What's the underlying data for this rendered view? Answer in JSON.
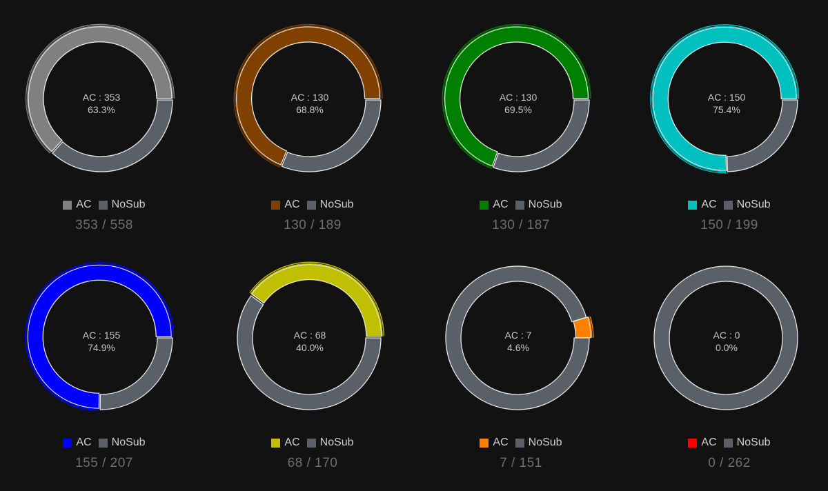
{
  "colors": {
    "nosub": "#5a6068",
    "background": "#121212"
  },
  "legend": {
    "ac_label": "AC",
    "nosub_label": "NoSub"
  },
  "chart_data": [
    {
      "type": "pie",
      "ac": 353,
      "total": 558,
      "center_line1": "AC : 353",
      "center_line2": "63.3%",
      "count_text": "353 / 558",
      "color": "#808080",
      "slices": [
        {
          "label": "AC",
          "value": 353
        },
        {
          "label": "NoSub",
          "value": 205
        }
      ]
    },
    {
      "type": "pie",
      "ac": 130,
      "total": 189,
      "center_line1": "AC : 130",
      "center_line2": "68.8%",
      "count_text": "130 / 189",
      "color": "#804000",
      "slices": [
        {
          "label": "AC",
          "value": 130
        },
        {
          "label": "NoSub",
          "value": 59
        }
      ]
    },
    {
      "type": "pie",
      "ac": 130,
      "total": 187,
      "center_line1": "AC : 130",
      "center_line2": "69.5%",
      "count_text": "130 / 187",
      "color": "#008000",
      "slices": [
        {
          "label": "AC",
          "value": 130
        },
        {
          "label": "NoSub",
          "value": 57
        }
      ]
    },
    {
      "type": "pie",
      "ac": 150,
      "total": 199,
      "center_line1": "AC : 150",
      "center_line2": "75.4%",
      "count_text": "150 / 199",
      "color": "#00c0c0",
      "slices": [
        {
          "label": "AC",
          "value": 150
        },
        {
          "label": "NoSub",
          "value": 49
        }
      ]
    },
    {
      "type": "pie",
      "ac": 155,
      "total": 207,
      "center_line1": "AC : 155",
      "center_line2": "74.9%",
      "count_text": "155 / 207",
      "color": "#0000ff",
      "slices": [
        {
          "label": "AC",
          "value": 155
        },
        {
          "label": "NoSub",
          "value": 52
        }
      ]
    },
    {
      "type": "pie",
      "ac": 68,
      "total": 170,
      "center_line1": "AC : 68",
      "center_line2": "40.0%",
      "count_text": "68 / 170",
      "color": "#c0c000",
      "slices": [
        {
          "label": "AC",
          "value": 68
        },
        {
          "label": "NoSub",
          "value": 102
        }
      ]
    },
    {
      "type": "pie",
      "ac": 7,
      "total": 151,
      "center_line1": "AC : 7",
      "center_line2": "4.6%",
      "count_text": "7 / 151",
      "color": "#ff8000",
      "slices": [
        {
          "label": "AC",
          "value": 7
        },
        {
          "label": "NoSub",
          "value": 144
        }
      ]
    },
    {
      "type": "pie",
      "ac": 0,
      "total": 262,
      "center_line1": "AC : 0",
      "center_line2": "0.0%",
      "count_text": "0 / 262",
      "color": "#ff0000",
      "slices": [
        {
          "label": "AC",
          "value": 0
        },
        {
          "label": "NoSub",
          "value": 262
        }
      ]
    }
  ]
}
